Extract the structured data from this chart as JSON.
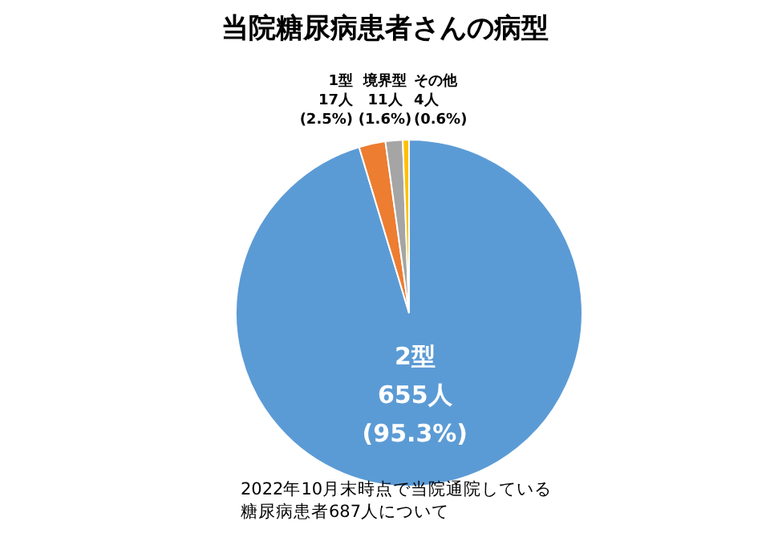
{
  "chart_data": {
    "type": "pie",
    "title": "当院糖尿病患者さんの病型",
    "categories": [
      "2型",
      "1型",
      "境界型",
      "その他"
    ],
    "values": [
      655,
      17,
      11,
      4
    ],
    "colors": [
      "#5b9bd5",
      "#ed7d31",
      "#a5a5a5",
      "#ffc000"
    ],
    "value_labels": [
      "655人 (95.3%)",
      "17人 (2.5%)",
      "11人 (1.6%)",
      "4人 (0.6%)"
    ],
    "legend": false,
    "annotations": [
      "2022年10月末時点で当院通院している",
      "糖尿病患者687人について"
    ]
  }
}
